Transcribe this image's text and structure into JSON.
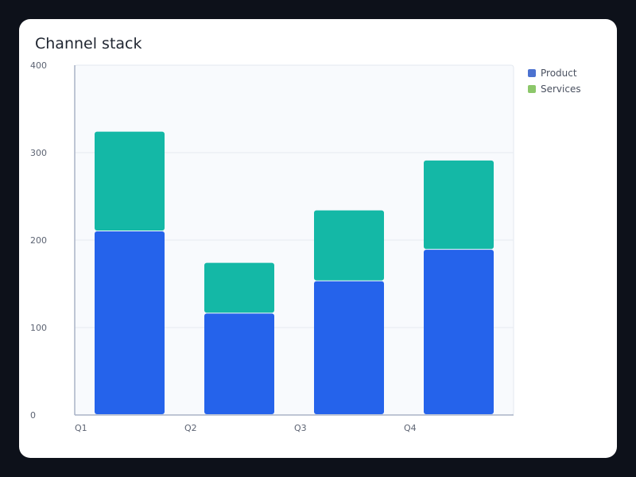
{
  "title": "Channel stack",
  "legend": [
    {
      "label": "Product",
      "color": "#4c72d0"
    },
    {
      "label": "Services",
      "color": "#8cc76a"
    }
  ],
  "chart_data": {
    "type": "bar",
    "stacked": true,
    "title": "Channel stack",
    "xlabel": "",
    "ylabel": "",
    "categories": [
      "Q1",
      "Q2",
      "Q3",
      "Q4"
    ],
    "ylim": [
      0,
      400
    ],
    "yticks": [
      0,
      100,
      200,
      300,
      400
    ],
    "grid": true,
    "legend_position": "right",
    "series": [
      {
        "name": "Product",
        "values": [
          210,
          116,
          153,
          189
        ],
        "color": "#2563eb"
      },
      {
        "name": "Services",
        "values": [
          114,
          58,
          81,
          102
        ],
        "color": "#14b8a6"
      }
    ]
  }
}
